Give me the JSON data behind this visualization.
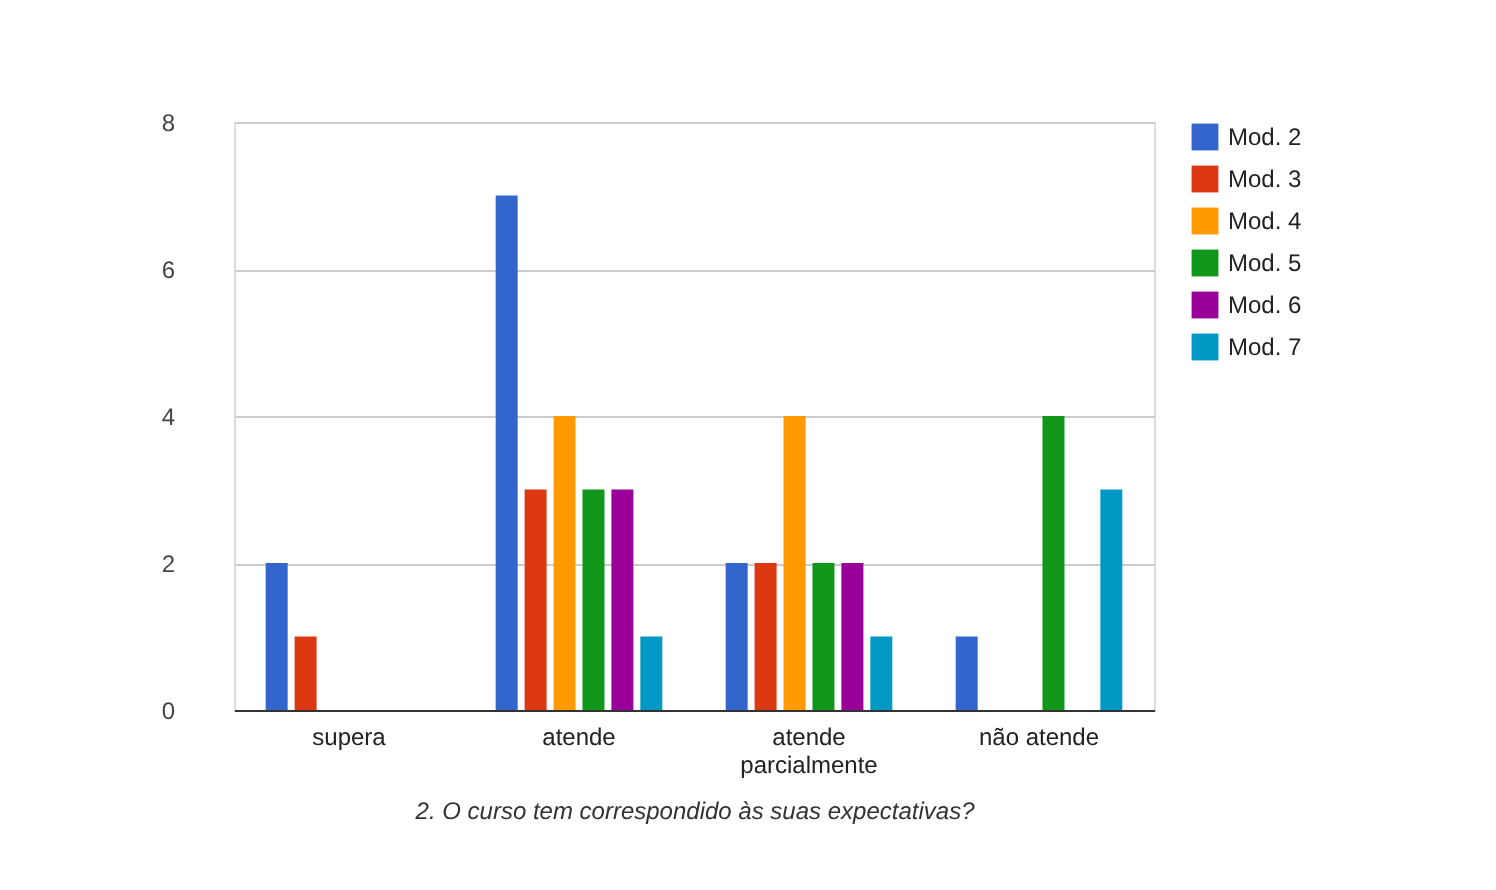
{
  "chart_data": {
    "type": "bar",
    "xlabel": "2. O curso tem correspondido às suas expectativas?",
    "categories": [
      "supera",
      "atende",
      "atende parcialmente",
      "não atende"
    ],
    "series": [
      {
        "name": "Mod. 2",
        "color": "#3366cc",
        "values": [
          2,
          7,
          2,
          1
        ]
      },
      {
        "name": "Mod. 3",
        "color": "#dc3912",
        "values": [
          1,
          3,
          2,
          0
        ]
      },
      {
        "name": "Mod. 4",
        "color": "#ff9900",
        "values": [
          0,
          4,
          4,
          0
        ]
      },
      {
        "name": "Mod. 5",
        "color": "#109618",
        "values": [
          0,
          3,
          2,
          4
        ]
      },
      {
        "name": "Mod. 6",
        "color": "#990099",
        "values": [
          0,
          3,
          2,
          0
        ]
      },
      {
        "name": "Mod. 7",
        "color": "#0099c6",
        "values": [
          0,
          1,
          1,
          3
        ]
      }
    ],
    "ylim": [
      0,
      8
    ],
    "yticks": [
      0,
      2,
      4,
      6,
      8
    ],
    "grid": "y",
    "legend": "top right"
  }
}
